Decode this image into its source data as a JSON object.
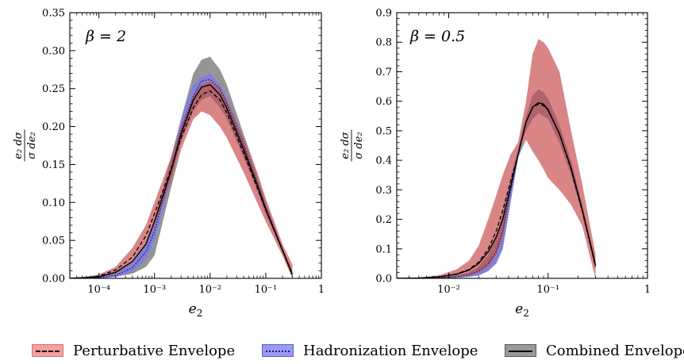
{
  "legend": {
    "perturbative": "Perturbative Envelope",
    "hadronization": "Hadronization Envelope",
    "combined": "Combined Envelope"
  },
  "colors": {
    "perturbative_fill": "#f08080",
    "hadronization_fill": "#7d7de8",
    "combined_fill": "#8a8a8a",
    "overlap_fill": "#8e4a4a"
  },
  "chart_data": [
    {
      "type": "area",
      "annotation": "β = 2",
      "xlabel": "e2",
      "ylabel": "(e2/σ) dσ/de2",
      "xscale": "log",
      "xlim": [
        3e-05,
        1
      ],
      "ylim": [
        0,
        0.35
      ],
      "yticks": [
        "0.00",
        "0.05",
        "0.10",
        "0.15",
        "0.20",
        "0.25",
        "0.30",
        "0.35"
      ],
      "xticks": [
        "10⁻⁴",
        "10⁻³",
        "10⁻²",
        "10⁻¹",
        "1"
      ],
      "x": [
        3e-05,
        6e-05,
        0.0001,
        0.0002,
        0.0004,
        0.0007,
        0.001,
        0.002,
        0.003,
        0.005,
        0.007,
        0.01,
        0.015,
        0.02,
        0.04,
        0.07,
        0.1,
        0.2,
        0.3
      ],
      "series": [
        {
          "name": "Perturbative Envelope",
          "low": [
            0,
            0,
            0.002,
            0.008,
            0.02,
            0.045,
            0.07,
            0.13,
            0.17,
            0.21,
            0.22,
            0.215,
            0.2,
            0.185,
            0.14,
            0.1,
            0.075,
            0.03,
            0.0
          ],
          "high": [
            0,
            0.002,
            0.005,
            0.015,
            0.04,
            0.07,
            0.1,
            0.16,
            0.2,
            0.24,
            0.255,
            0.26,
            0.25,
            0.235,
            0.185,
            0.14,
            0.105,
            0.045,
            0.018
          ],
          "central": [
            0,
            0.001,
            0.003,
            0.011,
            0.028,
            0.056,
            0.085,
            0.145,
            0.185,
            0.225,
            0.242,
            0.247,
            0.235,
            0.218,
            0.165,
            0.12,
            0.09,
            0.037,
            0.006
          ]
        },
        {
          "name": "Hadronization Envelope",
          "low": [
            0,
            0,
            0,
            0.002,
            0.008,
            0.025,
            0.05,
            0.13,
            0.18,
            0.22,
            0.235,
            0.24,
            0.225,
            0.21,
            0.16,
            0.115,
            0.085,
            0.035,
            0.002
          ],
          "high": [
            0,
            0,
            0.002,
            0.006,
            0.02,
            0.045,
            0.075,
            0.16,
            0.21,
            0.255,
            0.265,
            0.27,
            0.255,
            0.24,
            0.185,
            0.135,
            0.1,
            0.04,
            0.01
          ],
          "central": [
            0,
            0,
            0.001,
            0.004,
            0.014,
            0.035,
            0.062,
            0.145,
            0.195,
            0.24,
            0.26,
            0.262,
            0.25,
            0.23,
            0.175,
            0.126,
            0.093,
            0.038,
            0.005
          ]
        },
        {
          "name": "Combined Envelope",
          "low": [
            0,
            0,
            0,
            0.002,
            0.006,
            0.015,
            0.03,
            0.12,
            0.17,
            0.21,
            0.22,
            0.215,
            0.2,
            0.185,
            0.14,
            0.1,
            0.075,
            0.03,
            0.0
          ],
          "high": [
            0,
            0.002,
            0.005,
            0.015,
            0.04,
            0.07,
            0.1,
            0.16,
            0.21,
            0.27,
            0.288,
            0.292,
            0.275,
            0.255,
            0.19,
            0.14,
            0.105,
            0.045,
            0.018
          ],
          "central": [
            0,
            0.001,
            0.002,
            0.008,
            0.022,
            0.045,
            0.075,
            0.142,
            0.19,
            0.235,
            0.252,
            0.255,
            0.242,
            0.224,
            0.17,
            0.123,
            0.091,
            0.037,
            0.005
          ]
        }
      ]
    },
    {
      "type": "area",
      "annotation": "β = 0.5",
      "xlabel": "e2",
      "ylabel": "(e2/σ) dσ/de2",
      "xscale": "log",
      "xlim": [
        0.003,
        1
      ],
      "ylim": [
        0,
        0.9
      ],
      "yticks": [
        "0.0",
        "0.1",
        "0.2",
        "0.3",
        "0.4",
        "0.5",
        "0.6",
        "0.7",
        "0.8",
        "0.9"
      ],
      "xticks": [
        "10⁻²",
        "10⁻¹",
        "1"
      ],
      "x": [
        0.003,
        0.005,
        0.008,
        0.012,
        0.016,
        0.02,
        0.025,
        0.03,
        0.035,
        0.042,
        0.05,
        0.06,
        0.07,
        0.08,
        0.09,
        0.1,
        0.13,
        0.17,
        0.22,
        0.3
      ],
      "series": [
        {
          "name": "Perturbative Envelope",
          "low": [
            0,
            0,
            0,
            0.005,
            0.01,
            0.02,
            0.04,
            0.08,
            0.14,
            0.3,
            0.43,
            0.47,
            0.43,
            0.4,
            0.37,
            0.34,
            0.3,
            0.25,
            0.18,
            0.0
          ],
          "high": [
            0,
            0.002,
            0.01,
            0.03,
            0.06,
            0.11,
            0.2,
            0.28,
            0.35,
            0.42,
            0.46,
            0.6,
            0.76,
            0.81,
            0.8,
            0.78,
            0.7,
            0.5,
            0.32,
            0.08
          ],
          "central": [
            0,
            0.001,
            0.005,
            0.015,
            0.03,
            0.055,
            0.1,
            0.16,
            0.23,
            0.33,
            0.42,
            0.53,
            0.58,
            0.59,
            0.585,
            0.57,
            0.49,
            0.37,
            0.23,
            0.04
          ]
        },
        {
          "name": "Hadronization Envelope",
          "low": [
            0,
            0,
            0,
            0.002,
            0.005,
            0.01,
            0.025,
            0.05,
            0.1,
            0.26,
            0.41,
            0.5,
            0.54,
            0.56,
            0.55,
            0.54,
            0.46,
            0.35,
            0.22,
            0.03
          ],
          "high": [
            0,
            0,
            0.003,
            0.01,
            0.02,
            0.04,
            0.08,
            0.14,
            0.22,
            0.34,
            0.44,
            0.55,
            0.62,
            0.64,
            0.63,
            0.61,
            0.52,
            0.4,
            0.25,
            0.06
          ],
          "central": [
            0,
            0,
            0.002,
            0.006,
            0.012,
            0.025,
            0.05,
            0.09,
            0.16,
            0.3,
            0.42,
            0.53,
            0.58,
            0.595,
            0.59,
            0.575,
            0.49,
            0.375,
            0.235,
            0.045
          ]
        },
        {
          "name": "Combined Envelope",
          "low": [
            0,
            0,
            0,
            0.002,
            0.005,
            0.01,
            0.025,
            0.05,
            0.1,
            0.26,
            0.41,
            0.47,
            0.43,
            0.4,
            0.37,
            0.34,
            0.3,
            0.25,
            0.18,
            0.0
          ],
          "high": [
            0,
            0.002,
            0.01,
            0.03,
            0.06,
            0.11,
            0.2,
            0.28,
            0.35,
            0.42,
            0.46,
            0.6,
            0.76,
            0.81,
            0.8,
            0.78,
            0.7,
            0.5,
            0.32,
            0.08
          ],
          "central": [
            0,
            0.001,
            0.005,
            0.014,
            0.028,
            0.05,
            0.09,
            0.14,
            0.2,
            0.31,
            0.42,
            0.53,
            0.58,
            0.595,
            0.59,
            0.57,
            0.49,
            0.375,
            0.235,
            0.045
          ]
        }
      ]
    }
  ]
}
